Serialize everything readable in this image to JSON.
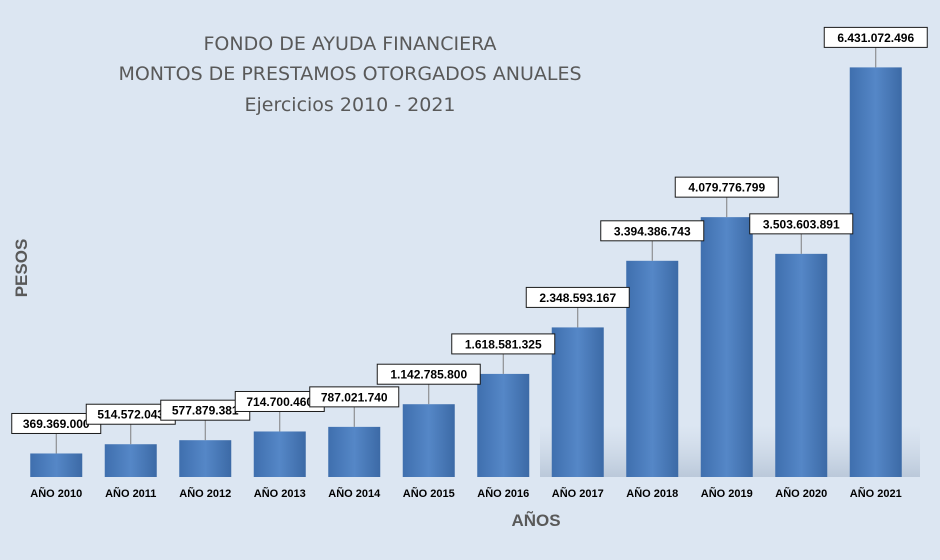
{
  "chart_data": {
    "type": "bar",
    "title": [
      "FONDO DE AYUDA FINANCIERA",
      "MONTOS DE PRESTAMOS OTORGADOS ANUALES",
      "Ejercicios 2010 - 2021"
    ],
    "xlabel": "AÑOS",
    "ylabel": "PESOS",
    "categories": [
      "AÑO 2010",
      "AÑO 2011",
      "AÑO 2012",
      "AÑO 2013",
      "AÑO 2014",
      "AÑO 2015",
      "AÑO 2016",
      "AÑO 2017",
      "AÑO 2018",
      "AÑO 2019",
      "AÑO 2020",
      "AÑO 2021"
    ],
    "values": [
      369369000,
      514572043,
      577879381,
      714700460,
      787021740,
      1142785800,
      1618581325,
      2348593167,
      3394386743,
      4079776799,
      3503603891,
      6431072496
    ],
    "value_labels": [
      "369.369.000",
      "514.572.043",
      "577.879.381",
      "714.700.460",
      "787.021.740",
      "1.142.785.800",
      "1.618.581.325",
      "2.348.593.167",
      "3.394.386.743",
      "4.079.776.799",
      "3.503.603.891",
      "6.431.072.496"
    ],
    "ylim": [
      0,
      6500000000
    ],
    "grid": false,
    "legend": "none",
    "colors": {
      "bar": "#4f81bd",
      "bar_dark": "#3a68a3",
      "background": "#dce6f2",
      "title": "#595959"
    }
  }
}
